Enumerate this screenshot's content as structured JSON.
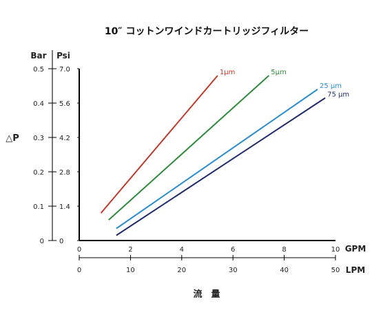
{
  "chart_data": {
    "type": "line",
    "title": "10″ コットンワインドカートリッジフィルター",
    "xlabel": "流　量",
    "ylabel": "△P",
    "x_units": [
      "GPM",
      "LPM"
    ],
    "y_units": [
      "Bar",
      "Psi"
    ],
    "xlim": [
      0,
      10
    ],
    "ylim": [
      0,
      0.5
    ],
    "xticks_gpm": [
      "0",
      "2",
      "4",
      "6",
      "8",
      "10"
    ],
    "xticks_lpm": [
      "0",
      "10",
      "20",
      "30",
      "40",
      "50"
    ],
    "yticks_bar": [
      "0",
      "0.1",
      "0.2",
      "0.3",
      "0.4",
      "0.5"
    ],
    "yticks_psi": [
      "0",
      "1.4",
      "2.8",
      "4.2",
      "5.6",
      "7.0"
    ],
    "series": [
      {
        "name": "1μm",
        "color": "#c0392b",
        "x": [
          0.85,
          5.4
        ],
        "y": [
          0.08,
          0.48
        ]
      },
      {
        "name": "5μm",
        "color": "#2e8b3a",
        "x": [
          1.15,
          7.4
        ],
        "y": [
          0.06,
          0.48
        ]
      },
      {
        "name": "25 μm",
        "color": "#2a8ccf",
        "x": [
          1.45,
          9.3
        ],
        "y": [
          0.035,
          0.44
        ]
      },
      {
        "name": "75 μm",
        "color": "#1f2a6b",
        "x": [
          1.45,
          9.6
        ],
        "y": [
          0.015,
          0.415
        ]
      }
    ]
  }
}
